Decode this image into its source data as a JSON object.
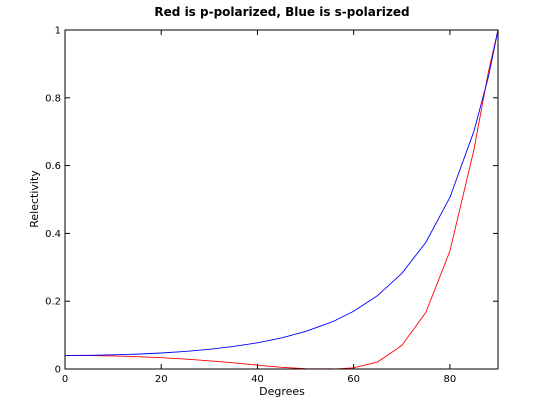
{
  "chart_data": {
    "type": "line",
    "title": "Red is p-polarized, Blue is s-polarized",
    "xlabel": "Degrees",
    "ylabel": "Relectivity",
    "xlim": [
      0,
      90
    ],
    "ylim": [
      0,
      1
    ],
    "grid": false,
    "x_ticks": [
      0,
      20,
      40,
      60,
      80
    ],
    "x_tick_labels": [
      "0",
      "20",
      "40",
      "60",
      "80"
    ],
    "y_ticks": [
      0,
      0.2,
      0.4,
      0.6,
      0.8,
      1
    ],
    "y_tick_labels": [
      "0",
      "0.2",
      "0.4",
      "0.6",
      "0.8",
      "1"
    ],
    "x": [
      0,
      5,
      10,
      15,
      20,
      25,
      30,
      35,
      40,
      45,
      50,
      55,
      56.3,
      60,
      65,
      70,
      75,
      80,
      85,
      88,
      90
    ],
    "series": [
      {
        "color": "#ff0000",
        "values": [
          0.04,
          0.0396,
          0.0384,
          0.0363,
          0.0333,
          0.0293,
          0.0242,
          0.0181,
          0.0113,
          0.005,
          0.0007,
          0.0004,
          0.0,
          0.0035,
          0.021,
          0.0693,
          0.167,
          0.3475,
          0.6472,
          0.876,
          1.0
        ]
      },
      {
        "color": "#0000ff",
        "values": [
          0.04,
          0.0404,
          0.0417,
          0.0439,
          0.0472,
          0.0518,
          0.0581,
          0.0664,
          0.0773,
          0.0917,
          0.1107,
          0.1361,
          0.1442,
          0.1703,
          0.217,
          0.2819,
          0.3736,
          0.506,
          0.7015,
          0.8616,
          1.0
        ]
      }
    ]
  }
}
